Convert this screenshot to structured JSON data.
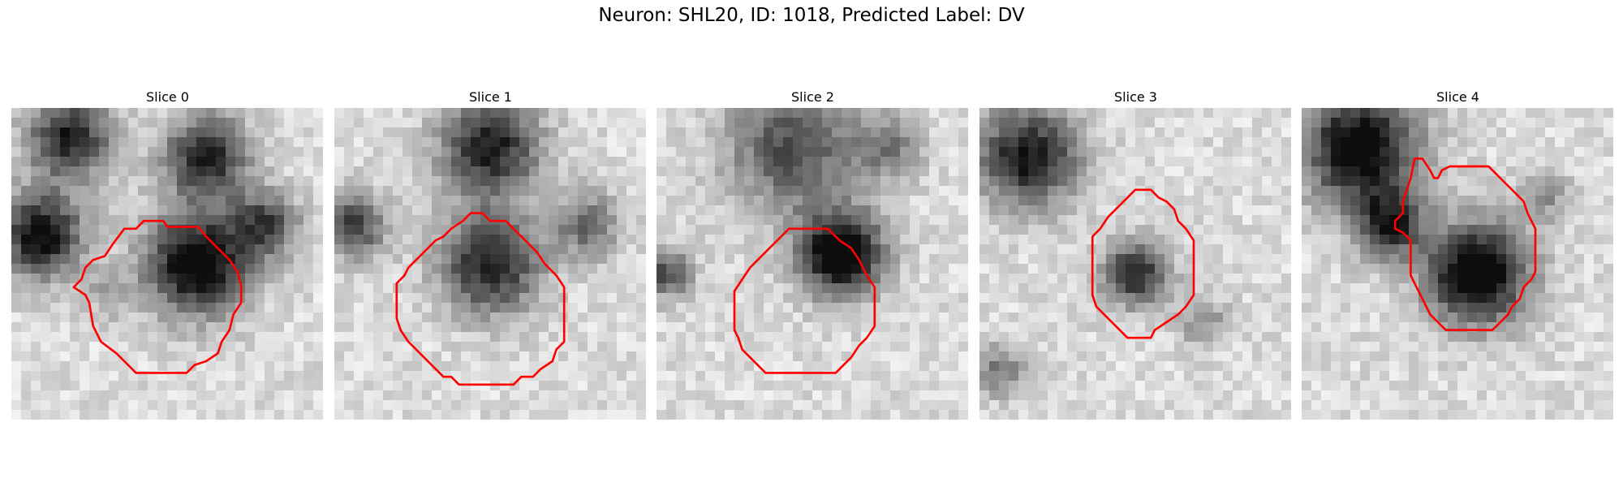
{
  "figure": {
    "title": "Neuron: SHL20, ID: 1018, Predicted Label: DV"
  },
  "panels": [
    {
      "title": "Slice 0"
    },
    {
      "title": "Slice 1"
    },
    {
      "title": "Slice 2"
    },
    {
      "title": "Slice 3"
    },
    {
      "title": "Slice 4"
    }
  ],
  "colors": {
    "contour": "#ff0000",
    "background": "#ffffff",
    "colormap": "gray"
  }
}
